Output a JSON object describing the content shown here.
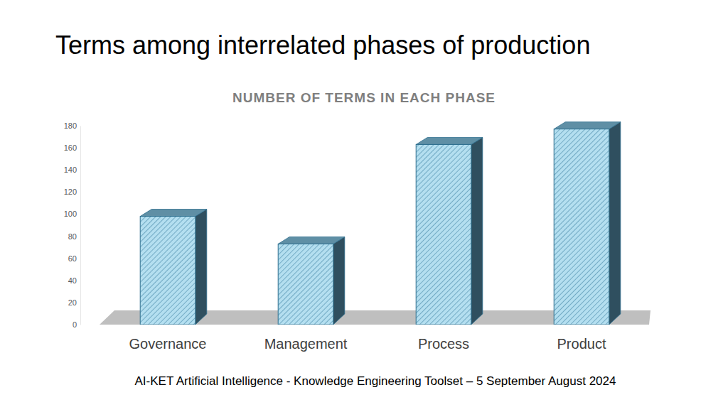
{
  "page": {
    "heading": "Terms among interrelated phases of production",
    "footer": "AI-KET Artificial Intelligence - Knowledge Engineering Toolset – 5 September August 2024"
  },
  "chart_data": {
    "type": "bar",
    "title": "NUMBER OF TERMS IN EACH PHASE",
    "categories": [
      "Governance",
      "Management",
      "Process",
      "Product"
    ],
    "values": [
      98,
      73,
      163,
      177
    ],
    "color": "#b4dff0",
    "ylim": [
      0,
      180
    ],
    "yticks": [
      0,
      20,
      40,
      60,
      80,
      100,
      120,
      140,
      160,
      180
    ],
    "grid": false
  }
}
